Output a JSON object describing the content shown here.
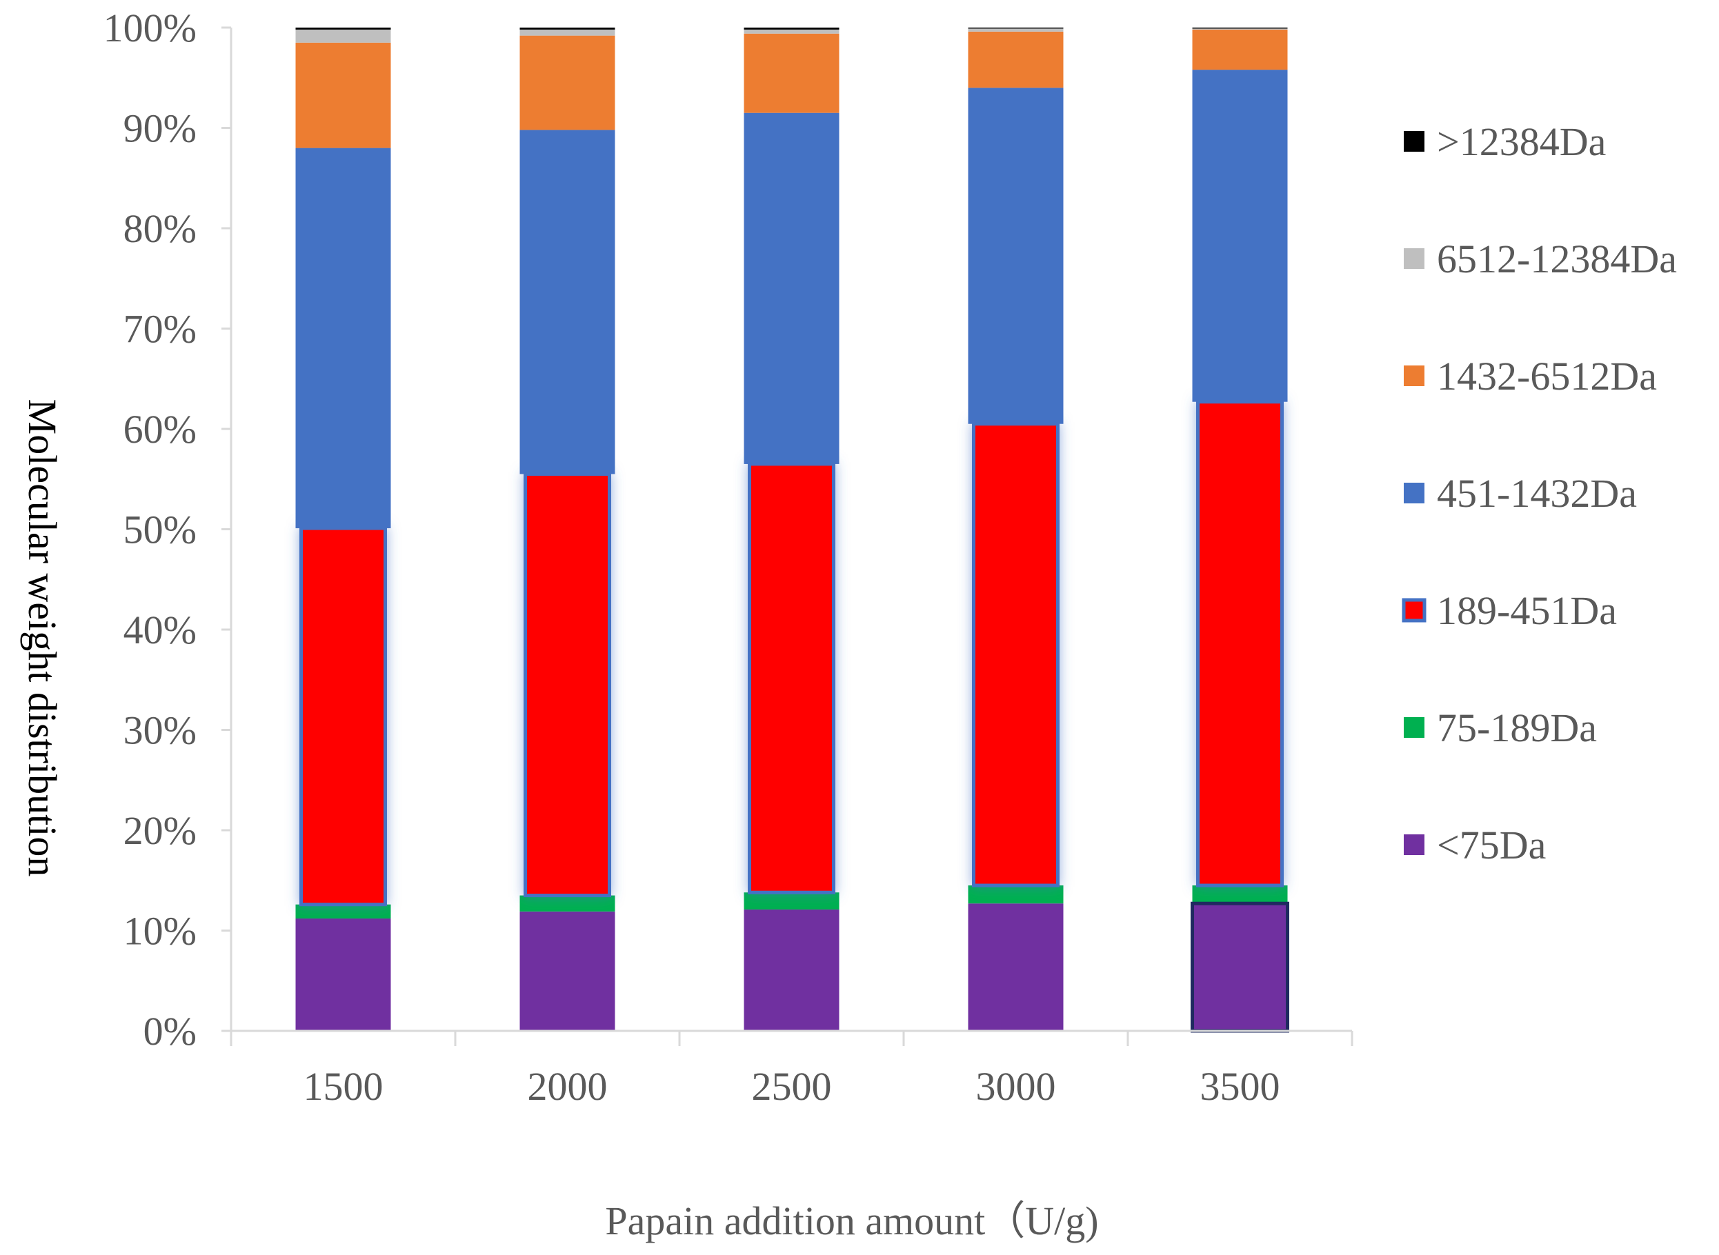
{
  "chart_data": {
    "type": "bar",
    "stacked": true,
    "percent": true,
    "title": "",
    "xlabel": "Papain addition amount（U/g)",
    "ylabel": "Molecular weight distribution",
    "ylim": [
      0,
      100
    ],
    "yticks": [
      "0%",
      "10%",
      "20%",
      "30%",
      "40%",
      "50%",
      "60%",
      "70%",
      "80%",
      "90%",
      "100%"
    ],
    "categories": [
      "1500",
      "2000",
      "2500",
      "3000",
      "3500"
    ],
    "legend_position": "right",
    "series": [
      {
        "name": "<75Da",
        "color": "#7030a0",
        "values": [
          11.2,
          11.9,
          12.1,
          12.7,
          12.7
        ]
      },
      {
        "name": "75-189Da",
        "color": "#00b050",
        "values": [
          1.4,
          1.6,
          1.7,
          1.8,
          1.8
        ]
      },
      {
        "name": "189-451Da",
        "color": "#ff0000",
        "values": [
          37.5,
          42.0,
          42.7,
          46.0,
          48.2
        ]
      },
      {
        "name": "451-1432Da",
        "color": "#4472c4",
        "values": [
          37.9,
          34.3,
          35.0,
          33.5,
          33.1
        ]
      },
      {
        "name": "1432-6512Da",
        "color": "#ed7d31",
        "values": [
          10.5,
          9.4,
          7.9,
          5.6,
          4.0
        ]
      },
      {
        "name": "6512-12384Da",
        "color": "#bfbfbf",
        "values": [
          1.3,
          0.6,
          0.4,
          0.3,
          0.1
        ]
      },
      {
        "name": ">12384Da",
        "color": "#000000",
        "values": [
          0.2,
          0.2,
          0.2,
          0.1,
          0.1
        ]
      }
    ]
  }
}
